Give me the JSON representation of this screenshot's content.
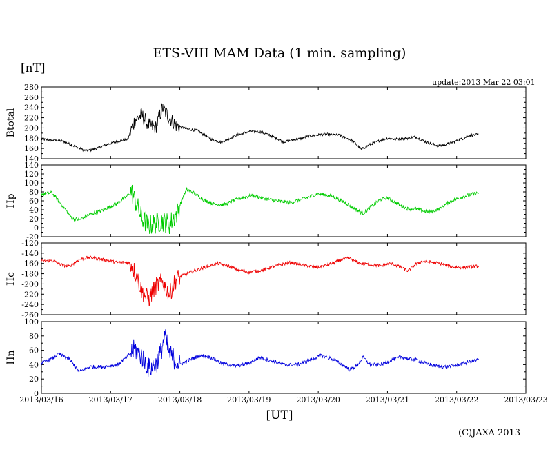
{
  "chart_data": {
    "type": "line",
    "title": "ETS-VIII MAM Data (1 min. sampling)",
    "unit_label": "[nT]",
    "update_label": "update:2013 Mar 22 03:01",
    "xlabel": "[UT]",
    "copyright": "(C)JAXA 2013",
    "x_tick_labels": [
      "2013/03/16",
      "2013/03/17",
      "2013/03/18",
      "2013/03/19",
      "2013/03/20",
      "2013/03/21",
      "2013/03/22",
      "2013/03/23"
    ],
    "xlim_days": [
      0,
      7
    ],
    "panels": [
      {
        "name": "Btotal",
        "label": "Btotal",
        "color": "#000000",
        "noise": 2.5,
        "ylim": [
          140,
          280
        ],
        "yticks": [
          140,
          160,
          180,
          200,
          220,
          240,
          260,
          280
        ],
        "series": [
          [
            0,
            178
          ],
          [
            0.3,
            175
          ],
          [
            0.55,
            160
          ],
          [
            0.65,
            155
          ],
          [
            0.8,
            160
          ],
          [
            1.0,
            170
          ],
          [
            1.2,
            177
          ],
          [
            1.25,
            178
          ],
          [
            1.28,
            190
          ],
          [
            1.35,
            215
          ],
          [
            1.45,
            225
          ],
          [
            1.55,
            205
          ],
          [
            1.65,
            200
          ],
          [
            1.75,
            240
          ],
          [
            1.85,
            220
          ],
          [
            1.95,
            205
          ],
          [
            2.1,
            198
          ],
          [
            2.25,
            195
          ],
          [
            2.45,
            178
          ],
          [
            2.6,
            172
          ],
          [
            2.8,
            185
          ],
          [
            3.0,
            193
          ],
          [
            3.15,
            193
          ],
          [
            3.3,
            186
          ],
          [
            3.5,
            173
          ],
          [
            3.7,
            178
          ],
          [
            3.9,
            185
          ],
          [
            4.1,
            188
          ],
          [
            4.3,
            186
          ],
          [
            4.5,
            175
          ],
          [
            4.62,
            158
          ],
          [
            4.75,
            168
          ],
          [
            4.9,
            176
          ],
          [
            5.0,
            180
          ],
          [
            5.1,
            178
          ],
          [
            5.3,
            180
          ],
          [
            5.4,
            183
          ],
          [
            5.5,
            176
          ],
          [
            5.65,
            168
          ],
          [
            5.75,
            165
          ],
          [
            5.9,
            170
          ],
          [
            6.1,
            180
          ],
          [
            6.2,
            186
          ],
          [
            6.32,
            187
          ]
        ]
      },
      {
        "name": "Hp",
        "label": "Hp",
        "color": "#00cc00",
        "noise": 4,
        "ylim": [
          -20,
          140
        ],
        "yticks": [
          -20,
          0,
          20,
          40,
          60,
          80,
          100,
          120,
          140
        ],
        "series": [
          [
            0,
            75
          ],
          [
            0.15,
            78
          ],
          [
            0.3,
            50
          ],
          [
            0.45,
            20
          ],
          [
            0.55,
            18
          ],
          [
            0.7,
            30
          ],
          [
            0.9,
            40
          ],
          [
            1.1,
            55
          ],
          [
            1.25,
            72
          ],
          [
            1.3,
            82
          ],
          [
            1.38,
            50
          ],
          [
            1.45,
            20
          ],
          [
            1.55,
            5
          ],
          [
            1.65,
            10
          ],
          [
            1.75,
            15
          ],
          [
            1.85,
            8
          ],
          [
            1.95,
            30
          ],
          [
            2.05,
            70
          ],
          [
            2.1,
            85
          ],
          [
            2.2,
            78
          ],
          [
            2.35,
            62
          ],
          [
            2.5,
            52
          ],
          [
            2.65,
            52
          ],
          [
            2.85,
            65
          ],
          [
            3.05,
            72
          ],
          [
            3.2,
            66
          ],
          [
            3.4,
            60
          ],
          [
            3.6,
            56
          ],
          [
            3.8,
            65
          ],
          [
            4.0,
            76
          ],
          [
            4.2,
            70
          ],
          [
            4.4,
            55
          ],
          [
            4.55,
            40
          ],
          [
            4.65,
            32
          ],
          [
            4.75,
            45
          ],
          [
            4.9,
            63
          ],
          [
            5.0,
            67
          ],
          [
            5.1,
            58
          ],
          [
            5.2,
            48
          ],
          [
            5.3,
            42
          ],
          [
            5.4,
            42
          ],
          [
            5.5,
            38
          ],
          [
            5.6,
            35
          ],
          [
            5.75,
            42
          ],
          [
            5.9,
            58
          ],
          [
            6.1,
            70
          ],
          [
            6.32,
            78
          ]
        ]
      },
      {
        "name": "Hc",
        "label": "Hc",
        "color": "#ee0000",
        "noise": 3,
        "ylim": [
          -260,
          -120
        ],
        "yticks": [
          -260,
          -240,
          -220,
          -200,
          -180,
          -160,
          -140,
          -120
        ],
        "series": [
          [
            0,
            -156
          ],
          [
            0.15,
            -154
          ],
          [
            0.3,
            -163
          ],
          [
            0.4,
            -166
          ],
          [
            0.55,
            -152
          ],
          [
            0.7,
            -148
          ],
          [
            0.9,
            -153
          ],
          [
            1.1,
            -158
          ],
          [
            1.25,
            -158
          ],
          [
            1.3,
            -162
          ],
          [
            1.38,
            -185
          ],
          [
            1.45,
            -215
          ],
          [
            1.55,
            -230
          ],
          [
            1.65,
            -205
          ],
          [
            1.75,
            -195
          ],
          [
            1.85,
            -220
          ],
          [
            1.95,
            -190
          ],
          [
            2.05,
            -183
          ],
          [
            2.2,
            -175
          ],
          [
            2.4,
            -166
          ],
          [
            2.55,
            -160
          ],
          [
            2.7,
            -165
          ],
          [
            2.85,
            -173
          ],
          [
            3.0,
            -177
          ],
          [
            3.2,
            -173
          ],
          [
            3.4,
            -164
          ],
          [
            3.6,
            -158
          ],
          [
            3.8,
            -164
          ],
          [
            4.0,
            -168
          ],
          [
            4.2,
            -160
          ],
          [
            4.35,
            -152
          ],
          [
            4.45,
            -150
          ],
          [
            4.6,
            -160
          ],
          [
            4.75,
            -162
          ],
          [
            4.9,
            -165
          ],
          [
            5.05,
            -160
          ],
          [
            5.2,
            -168
          ],
          [
            5.3,
            -175
          ],
          [
            5.4,
            -162
          ],
          [
            5.5,
            -156
          ],
          [
            5.6,
            -157
          ],
          [
            5.75,
            -160
          ],
          [
            5.9,
            -166
          ],
          [
            6.1,
            -168
          ],
          [
            6.32,
            -165
          ]
        ]
      },
      {
        "name": "Hn",
        "label": "Hn",
        "color": "#0000dd",
        "noise": 2.5,
        "ylim": [
          0,
          100
        ],
        "yticks": [
          0,
          20,
          40,
          60,
          80,
          100
        ],
        "series": [
          [
            0,
            42
          ],
          [
            0.15,
            48
          ],
          [
            0.25,
            55
          ],
          [
            0.4,
            48
          ],
          [
            0.55,
            30
          ],
          [
            0.7,
            37
          ],
          [
            0.9,
            37
          ],
          [
            1.1,
            40
          ],
          [
            1.25,
            52
          ],
          [
            1.35,
            62
          ],
          [
            1.45,
            52
          ],
          [
            1.55,
            35
          ],
          [
            1.65,
            40
          ],
          [
            1.72,
            55
          ],
          [
            1.78,
            80
          ],
          [
            1.85,
            55
          ],
          [
            1.95,
            45
          ],
          [
            2.0,
            40
          ],
          [
            2.15,
            47
          ],
          [
            2.3,
            53
          ],
          [
            2.45,
            50
          ],
          [
            2.6,
            42
          ],
          [
            2.8,
            38
          ],
          [
            3.0,
            42
          ],
          [
            3.15,
            50
          ],
          [
            3.3,
            46
          ],
          [
            3.5,
            40
          ],
          [
            3.7,
            40
          ],
          [
            3.9,
            47
          ],
          [
            4.05,
            53
          ],
          [
            4.2,
            48
          ],
          [
            4.35,
            40
          ],
          [
            4.45,
            33
          ],
          [
            4.55,
            38
          ],
          [
            4.65,
            50
          ],
          [
            4.75,
            40
          ],
          [
            4.9,
            40
          ],
          [
            5.05,
            46
          ],
          [
            5.2,
            51
          ],
          [
            5.3,
            48
          ],
          [
            5.4,
            47
          ],
          [
            5.55,
            42
          ],
          [
            5.7,
            38
          ],
          [
            5.85,
            37
          ],
          [
            6.0,
            39
          ],
          [
            6.15,
            43
          ],
          [
            6.32,
            47
          ]
        ]
      }
    ]
  }
}
